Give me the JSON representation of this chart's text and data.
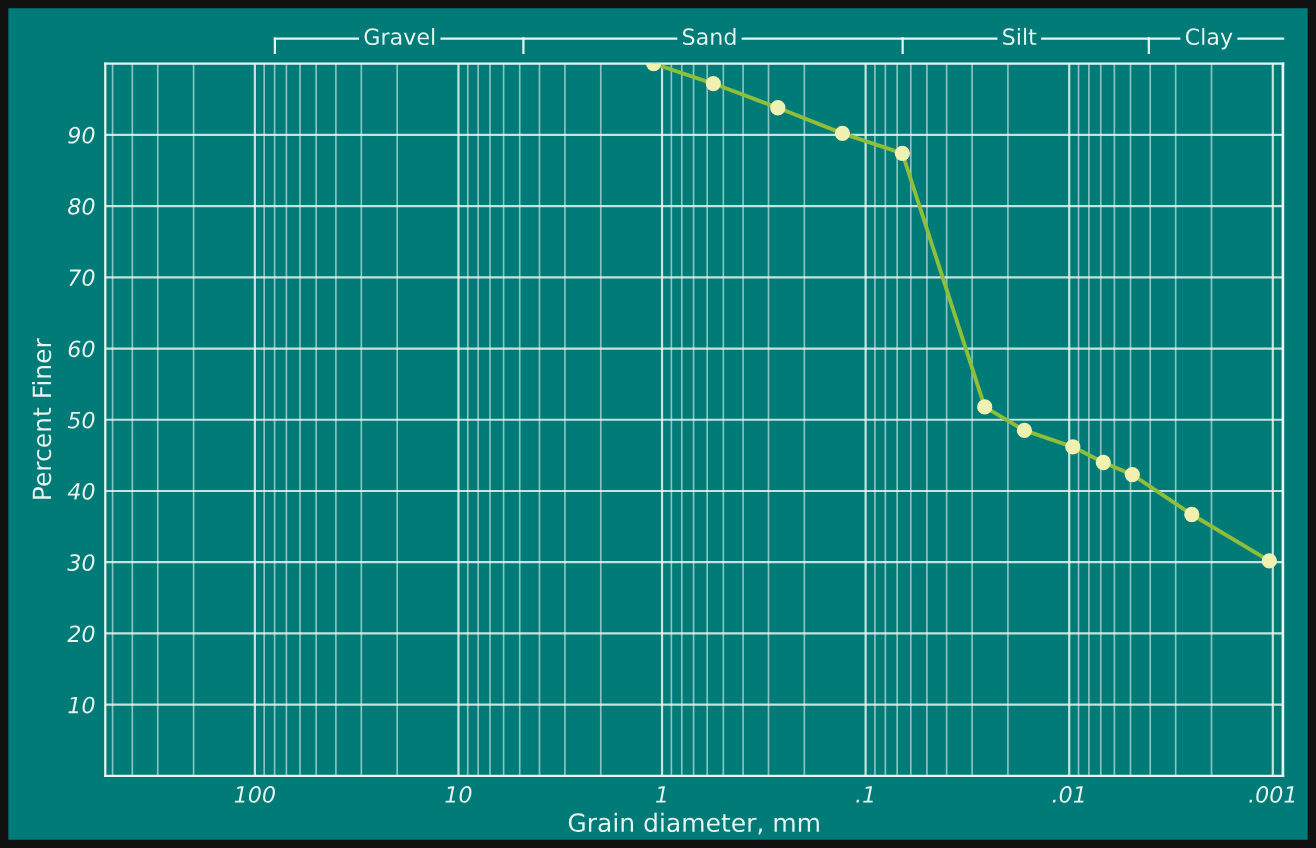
{
  "chart_data": {
    "type": "line",
    "xlabel": "Grain diameter, mm",
    "ylabel": "Percent Finer",
    "log": "x",
    "grid": true,
    "marker": "circle",
    "line_style": "solid",
    "xlim": [
      543,
      0.00089
    ],
    "ylim": [
      0,
      100
    ],
    "xticks": [
      100,
      10,
      1,
      {
        "value": 0.1,
        "label": ".1"
      },
      {
        "value": 0.01,
        "label": ".01"
      },
      {
        "value": 0.001,
        "label": ".001"
      }
    ],
    "yticks": [
      10,
      20,
      30,
      40,
      50,
      60,
      70,
      80,
      90
    ],
    "series": [
      {
        "color": "#8fbf3a",
        "x": [
          1.1,
          0.56,
          0.27,
          0.13,
          0.066,
          0.026,
          0.0166,
          0.0096,
          0.0068,
          0.0049,
          0.0025,
          0.00104
        ],
        "values": [
          100,
          97.2,
          93.8,
          90.2,
          87.4,
          51.8,
          48.5,
          46.2,
          44,
          42.3,
          36.7,
          30.2
        ]
      }
    ],
    "annotations": [
      "Gravel",
      "Sand",
      "Silt",
      "Clay"
    ]
  }
}
